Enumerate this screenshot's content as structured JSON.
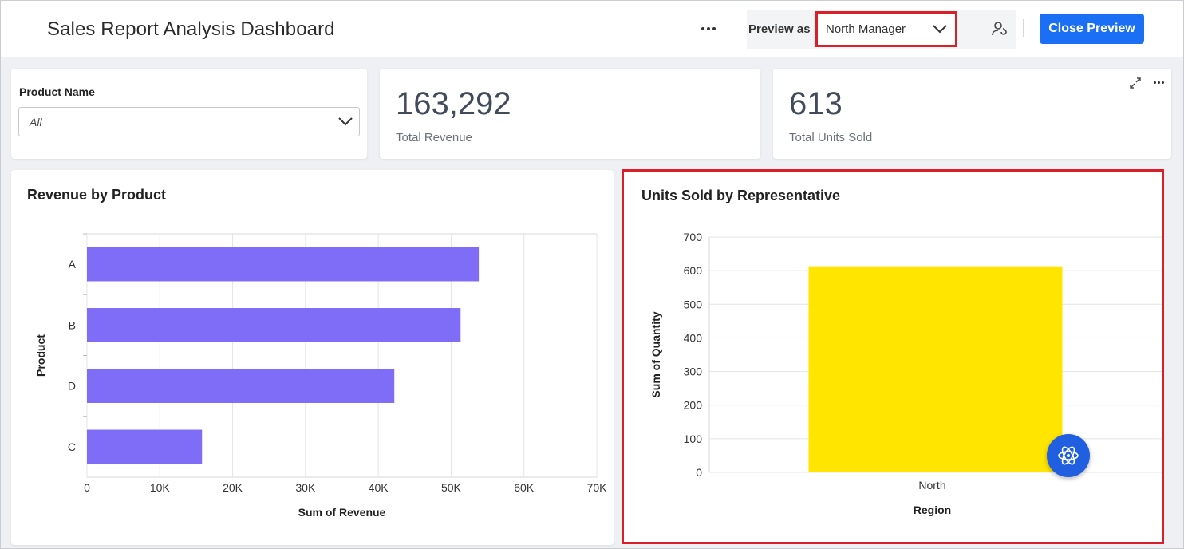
{
  "header": {
    "title": "Sales Report Analysis Dashboard",
    "preview_label": "Preview as",
    "preview_value": "North Manager",
    "close_button": "Close Preview"
  },
  "filter": {
    "label": "Product Name",
    "value": "All"
  },
  "kpis": [
    {
      "value": "163,292",
      "label": "Total Revenue"
    },
    {
      "value": "613",
      "label": "Total Units Sold"
    }
  ],
  "colors": {
    "accent": "#1b6ff5",
    "highlight": "#d81f2a",
    "bar_revenue": "#7f6cf7",
    "bar_units": "#ffe500"
  },
  "chart_data": [
    {
      "type": "bar",
      "orientation": "horizontal",
      "title": "Revenue by Product",
      "xlabel": "Sum of Revenue",
      "ylabel": "Product",
      "categories": [
        "A",
        "B",
        "D",
        "C"
      ],
      "values": [
        53800,
        51300,
        42200,
        15800
      ],
      "xlim": [
        0,
        70000
      ],
      "x_ticks": [
        "0",
        "10K",
        "20K",
        "30K",
        "40K",
        "50K",
        "60K",
        "70K"
      ],
      "grid": true
    },
    {
      "type": "bar",
      "orientation": "vertical",
      "title": "Units Sold by Representative",
      "xlabel": "Region",
      "ylabel": "Sum of Quantity",
      "categories": [
        "North"
      ],
      "values": [
        613
      ],
      "ylim": [
        0,
        700
      ],
      "y_ticks": [
        "0",
        "100",
        "200",
        "300",
        "400",
        "500",
        "600",
        "700"
      ],
      "grid": true
    }
  ]
}
